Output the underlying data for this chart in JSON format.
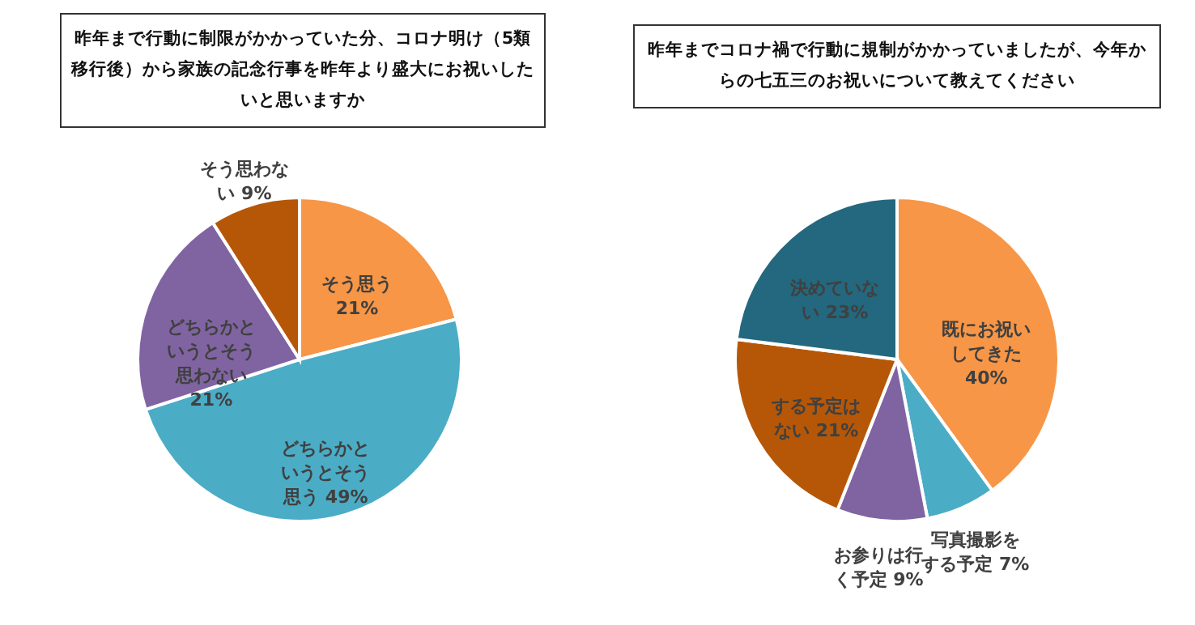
{
  "chart_data": [
    {
      "type": "pie",
      "title": "昨年まで行動に制限がかかっていた分、コロナ明け（5類移行後）から家族の記念行事を昨年より盛大にお祝いしたいと思いますか",
      "categories": [
        "そう思う",
        "どちらかというとそう思う",
        "どちらかというとそう思わない",
        "そう思わない"
      ],
      "values": [
        21,
        49,
        21,
        9
      ],
      "colors": [
        "#f79646",
        "#4bacc6",
        "#8064a2",
        "#b65708"
      ],
      "value_labels": [
        "21%",
        "49%",
        "21%",
        "9%"
      ]
    },
    {
      "type": "pie",
      "title": "昨年までコロナ禍で行動に規制がかかっていましたが、今年からの七五三のお祝いについて教えてください",
      "categories": [
        "既にお祝いしてきた",
        "写真撮影をする予定",
        "お参りは行く予定",
        "する予定はない",
        "決めていない"
      ],
      "values": [
        40,
        7,
        9,
        21,
        23
      ],
      "colors": [
        "#f79646",
        "#4bacc6",
        "#8064a2",
        "#b65708",
        "#23687e"
      ],
      "value_labels": [
        "40%",
        "7%",
        "9%",
        "21%",
        "23%"
      ]
    }
  ]
}
